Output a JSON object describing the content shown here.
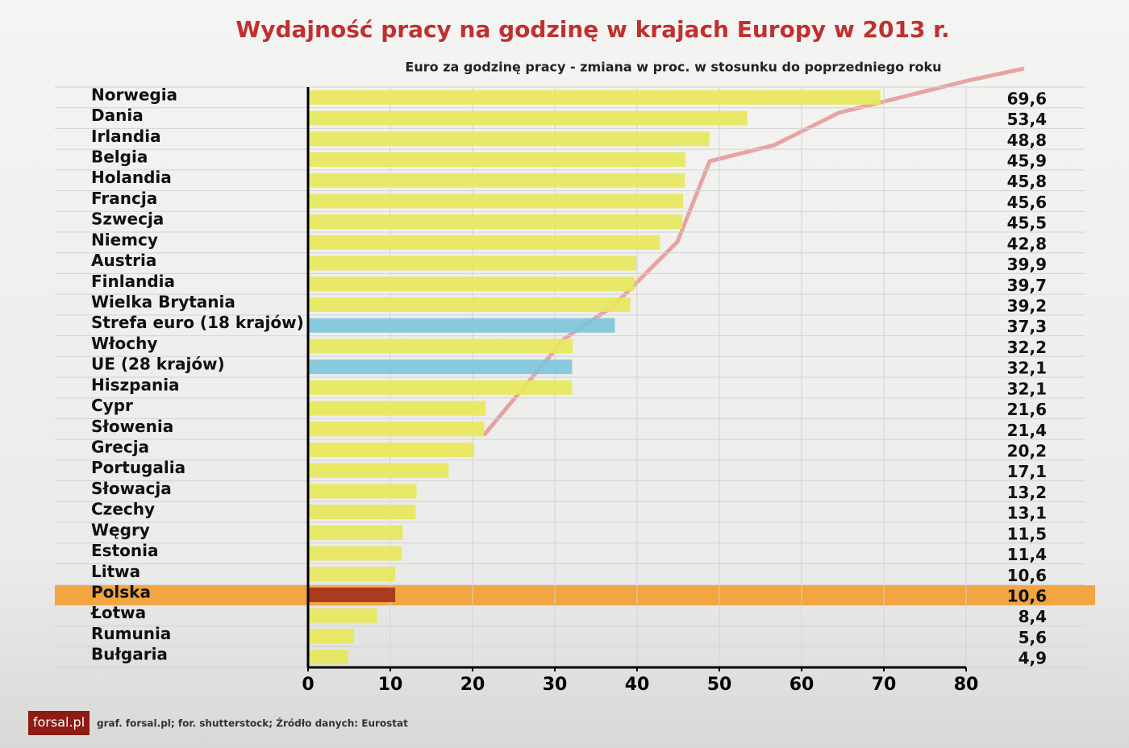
{
  "chart_data": {
    "type": "bar",
    "orientation": "horizontal",
    "title": "Wydajność pracy na godzinę  w krajach Europy w 2013 r.",
    "subtitle": "Euro za godzinę pracy - zmiana w proc. w stosunku do poprzedniego roku",
    "categories": [
      "Norwegia",
      "Dania",
      "Irlandia",
      "Belgia",
      "Holandia",
      "Francja",
      "Szwecja",
      "Niemcy",
      "Austria",
      "Finlandia",
      "Wielka Brytania",
      "Strefa euro (18 krajów)",
      "Włochy",
      "UE (28 krajów)",
      "Hiszpania",
      "Cypr",
      "Słowenia",
      "Grecja",
      "Portugalia",
      "Słowacja",
      "Czechy",
      "Węgry",
      "Estonia",
      "Litwa",
      "Polska",
      "Łotwa",
      "Rumunia",
      "Bułgaria"
    ],
    "values": [
      69.6,
      53.4,
      48.8,
      45.9,
      45.8,
      45.6,
      45.5,
      42.8,
      39.9,
      39.7,
      39.2,
      37.3,
      32.2,
      32.1,
      32.1,
      21.6,
      21.4,
      20.2,
      17.1,
      13.2,
      13.1,
      11.5,
      11.4,
      10.6,
      10.6,
      8.4,
      5.6,
      4.9
    ],
    "value_labels": [
      "69,6",
      "53,4",
      "48,8",
      "45,9",
      "45,8",
      "45,6",
      "45,5",
      "42,8",
      "39,9",
      "39,7",
      "39,2",
      "37,3",
      "32,2",
      "32,1",
      "32,1",
      "21,6",
      "21,4",
      "20,2",
      "17,1",
      "13,2",
      "13,1",
      "11,5",
      "11,4",
      "10,6",
      "10,6",
      "8,4",
      "5,6",
      "4,9"
    ],
    "colors": [
      "#e8e85a",
      "#e8e85a",
      "#e8e85a",
      "#e8e85a",
      "#e8e85a",
      "#e8e85a",
      "#e8e85a",
      "#e8e85a",
      "#e8e85a",
      "#e8e85a",
      "#e8e85a",
      "#7cc4dc",
      "#e8e85a",
      "#7cc4dc",
      "#e8e85a",
      "#e8e85a",
      "#e8e85a",
      "#e8e85a",
      "#e8e85a",
      "#e8e85a",
      "#e8e85a",
      "#e8e85a",
      "#e8e85a",
      "#e8e85a",
      "#a3301c",
      "#e8e85a",
      "#e8e85a",
      "#e8e85a"
    ],
    "highlight_rows": [
      24
    ],
    "highlight_color": "#f2a541",
    "xlim": [
      0,
      80
    ],
    "xticks": [
      0,
      10,
      20,
      30,
      40,
      50,
      60,
      70,
      80
    ],
    "grid": true,
    "logo": "forsal.pl",
    "source": "graf. forsal.pl; for. shutterstock;  Źródło danych: Eurostat"
  }
}
